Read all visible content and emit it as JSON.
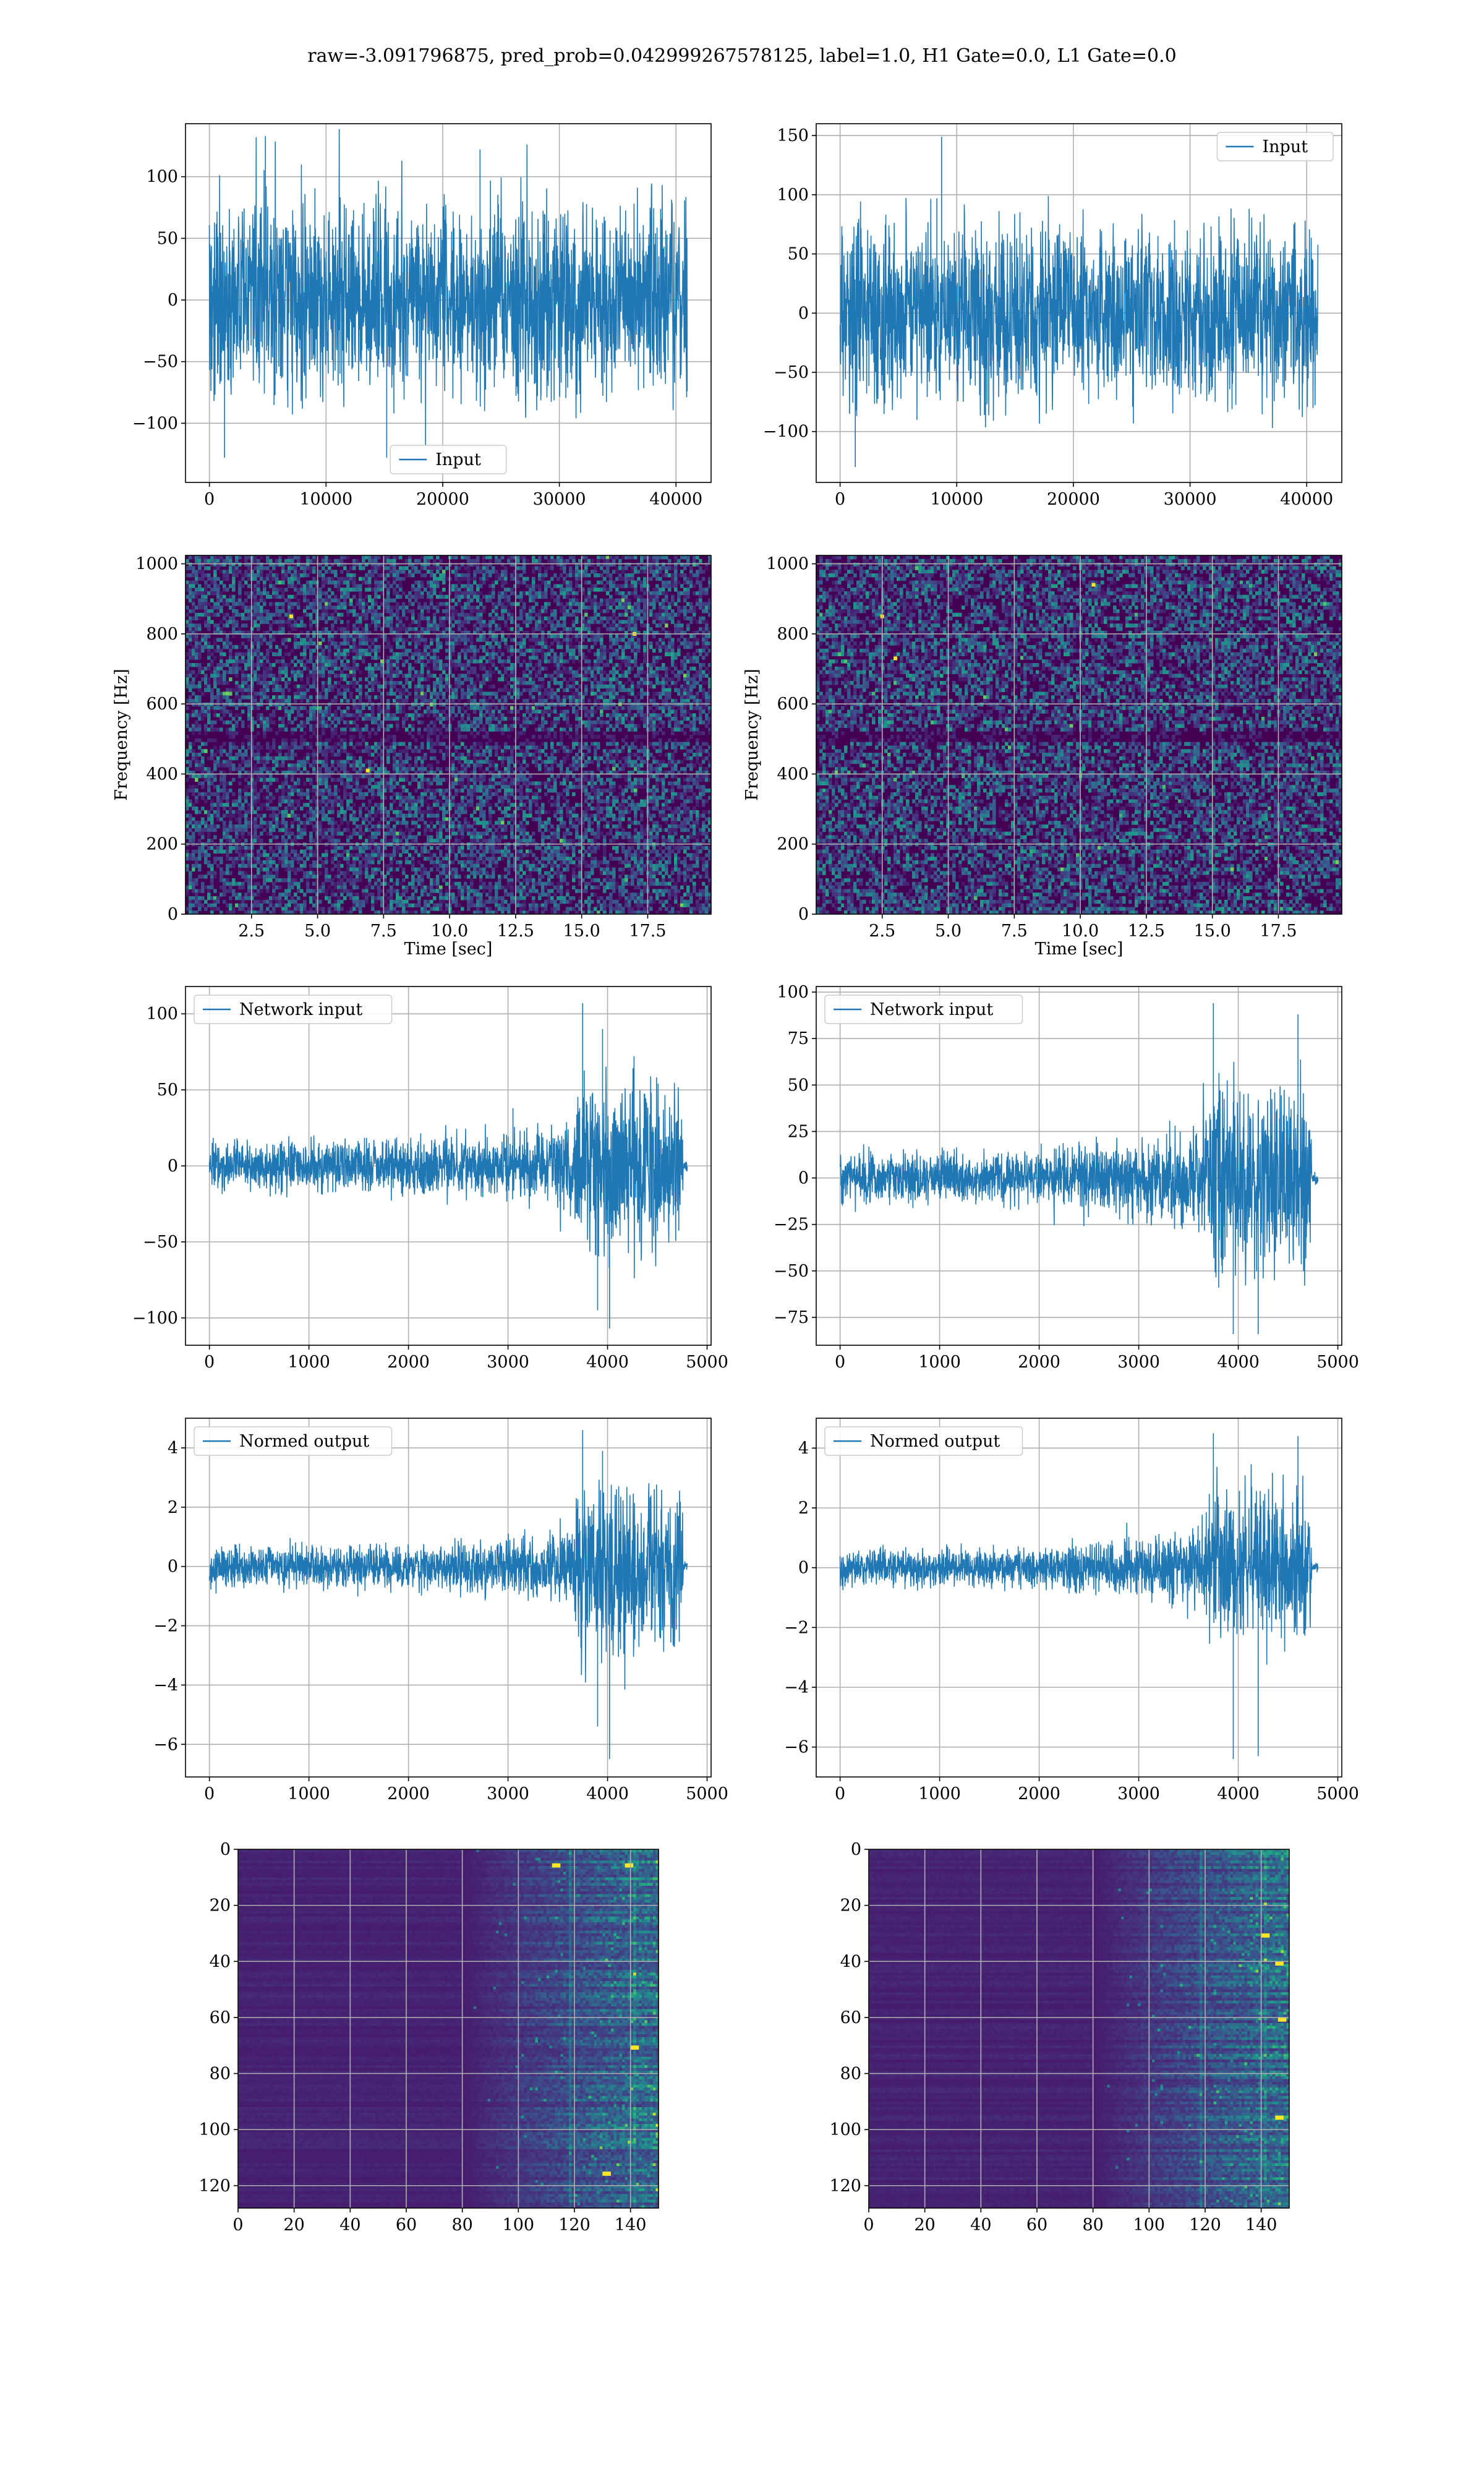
{
  "figure": {
    "title": "raw=-3.091796875, pred_prob=0.042999267578125, label=1.0, H1 Gate=0.0, L1 Gate=0.0",
    "colors": {
      "line": "#1f77b4",
      "grid": "#b0b0b0",
      "axes": "#000000",
      "viridis": [
        "#440154",
        "#472d7b",
        "#3b528b",
        "#2c728e",
        "#21918c",
        "#28ae80",
        "#5ec962",
        "#addc30",
        "#fde725"
      ]
    }
  },
  "chart_data": [
    {
      "id": "input-h1",
      "type": "line",
      "legend": [
        "Input"
      ],
      "legend_loc": "lower center",
      "xlim": [
        -2048,
        43008
      ],
      "ylim": [
        -148,
        143
      ],
      "xticks": [
        0,
        10000,
        20000,
        30000,
        40000
      ],
      "yticks": [
        -100,
        -50,
        0,
        50,
        100
      ],
      "series": [
        {
          "name": "Input",
          "kind": "noise",
          "n": 40960,
          "envelope": {
            "x": [
              0,
              40960
            ],
            "amp": [
              65,
              65
            ]
          },
          "spikes": [
            [
              4800,
              133
            ],
            [
              15200,
              -128
            ],
            [
              23200,
              122
            ],
            [
              1300,
              -128
            ]
          ]
        }
      ]
    },
    {
      "id": "input-l1",
      "type": "line",
      "legend": [
        "Input"
      ],
      "legend_loc": "upper right",
      "xlim": [
        -2048,
        43008
      ],
      "ylim": [
        -143,
        160
      ],
      "xticks": [
        0,
        10000,
        20000,
        30000,
        40000
      ],
      "yticks": [
        -100,
        -50,
        0,
        50,
        100,
        150
      ],
      "series": [
        {
          "name": "Input",
          "kind": "noise",
          "n": 40960,
          "envelope": {
            "x": [
              0,
              40960
            ],
            "amp": [
              62,
              62
            ]
          },
          "spikes": [
            [
              8700,
              149
            ],
            [
              1300,
              -130
            ],
            [
              8300,
              97
            ]
          ]
        }
      ]
    },
    {
      "id": "spec-h1",
      "type": "heatmap",
      "colormap": "viridis",
      "xlabel": "Time [sec]",
      "ylabel": "Frequency [Hz]",
      "xlim": [
        0,
        19.9
      ],
      "ylim": [
        0,
        1024
      ],
      "xticks": [
        2.5,
        5.0,
        7.5,
        10.0,
        12.5,
        15.0,
        17.5
      ],
      "xticklabels": [
        "2.5",
        "5.0",
        "7.5",
        "10.0",
        "12.5",
        "15.0",
        "17.5"
      ],
      "yticks": [
        0,
        200,
        400,
        600,
        800,
        1000
      ],
      "dark_band_freq": [
        500,
        512
      ],
      "bright_spots": [
        [
          17.0,
          800
        ],
        [
          6.9,
          410
        ],
        [
          4.0,
          850
        ]
      ]
    },
    {
      "id": "spec-l1",
      "type": "heatmap",
      "colormap": "viridis",
      "xlabel": "Time [sec]",
      "ylabel": "Frequency [Hz]",
      "xlim": [
        0,
        19.9
      ],
      "ylim": [
        0,
        1024
      ],
      "xticks": [
        2.5,
        5.0,
        7.5,
        10.0,
        12.5,
        15.0,
        17.5
      ],
      "xticklabels": [
        "2.5",
        "5.0",
        "7.5",
        "10.0",
        "12.5",
        "15.0",
        "17.5"
      ],
      "yticks": [
        0,
        200,
        400,
        600,
        800,
        1000
      ],
      "dark_band_freq": [
        500,
        512
      ],
      "bright_spots": [
        [
          10.5,
          940
        ],
        [
          3.0,
          730
        ],
        [
          2.5,
          850
        ]
      ]
    },
    {
      "id": "netin-h1",
      "type": "line",
      "legend": [
        "Network input"
      ],
      "legend_loc": "upper left",
      "xlim": [
        -240,
        5040
      ],
      "ylim": [
        -118,
        118
      ],
      "xticks": [
        0,
        1000,
        2000,
        3000,
        4000,
        5000
      ],
      "yticks": [
        -100,
        -50,
        0,
        50,
        100
      ],
      "series": [
        {
          "name": "Network input",
          "kind": "noise",
          "n": 4800,
          "envelope": {
            "x": [
              0,
              2000,
              3400,
              3650,
              3700,
              4500,
              4750,
              4760,
              4800
            ],
            "amp": [
              13,
              15,
              20,
              25,
              48,
              45,
              45,
              3,
              3
            ]
          },
          "spikes": [
            [
              3750,
              107
            ],
            [
              4020,
              -107
            ],
            [
              3950,
              90
            ],
            [
              3900,
              -95
            ],
            [
              3050,
              38
            ]
          ]
        }
      ]
    },
    {
      "id": "netin-l1",
      "type": "line",
      "legend": [
        "Network input"
      ],
      "legend_loc": "upper left",
      "xlim": [
        -240,
        5040
      ],
      "ylim": [
        -90,
        103
      ],
      "xticks": [
        0,
        1000,
        2000,
        3000,
        4000,
        5000
      ],
      "yticks": [
        -75,
        -50,
        -25,
        0,
        25,
        50,
        75,
        100
      ],
      "series": [
        {
          "name": "Network input",
          "kind": "noise",
          "n": 4800,
          "envelope": {
            "x": [
              0,
              2000,
              3300,
              3600,
              3700,
              4500,
              4720,
              4740,
              4800
            ],
            "amp": [
              11,
              12,
              20,
              24,
              45,
              42,
              42,
              3,
              3
            ]
          },
          "spikes": [
            [
              3750,
              94
            ],
            [
              3950,
              -84
            ],
            [
              4200,
              -84
            ],
            [
              4600,
              88
            ]
          ]
        }
      ]
    },
    {
      "id": "normed-h1",
      "type": "line",
      "legend": [
        "Normed output"
      ],
      "legend_loc": "upper left",
      "xlim": [
        -240,
        5040
      ],
      "ylim": [
        -7.1,
        5.0
      ],
      "xticks": [
        0,
        1000,
        2000,
        3000,
        4000,
        5000
      ],
      "yticks": [
        -6,
        -4,
        -2,
        0,
        2,
        4
      ],
      "series": [
        {
          "name": "Normed output",
          "kind": "noise",
          "n": 4800,
          "envelope": {
            "x": [
              0,
              2000,
              3400,
              3650,
              3700,
              4500,
              4750,
              4760,
              4800
            ],
            "amp": [
              0.55,
              0.6,
              0.9,
              1.1,
              2.4,
              2.3,
              2.3,
              0.15,
              0.15
            ]
          },
          "spikes": [
            [
              3750,
              4.6
            ],
            [
              4020,
              -6.5
            ],
            [
              3950,
              3.9
            ],
            [
              3900,
              -5.4
            ]
          ]
        }
      ]
    },
    {
      "id": "normed-l1",
      "type": "line",
      "legend": [
        "Normed output"
      ],
      "legend_loc": "upper left",
      "xlim": [
        -240,
        5040
      ],
      "ylim": [
        -7.0,
        5.0
      ],
      "xticks": [
        0,
        1000,
        2000,
        3000,
        4000,
        5000
      ],
      "yticks": [
        -6,
        -4,
        -2,
        0,
        2,
        4
      ],
      "series": [
        {
          "name": "Normed output",
          "kind": "noise",
          "n": 4800,
          "envelope": {
            "x": [
              0,
              2000,
              3300,
              3600,
              3700,
              4500,
              4720,
              4740,
              4800
            ],
            "amp": [
              0.5,
              0.55,
              0.9,
              1.1,
              2.2,
              2.1,
              2.1,
              0.15,
              0.15
            ]
          },
          "spikes": [
            [
              3750,
              4.5
            ],
            [
              3950,
              -6.4
            ],
            [
              4200,
              -6.3
            ],
            [
              4600,
              4.4
            ]
          ]
        }
      ]
    },
    {
      "id": "features-h1",
      "type": "heatmap",
      "colormap": "viridis",
      "xlim": [
        0,
        150
      ],
      "ylim": [
        128,
        0
      ],
      "xticks": [
        0,
        20,
        40,
        60,
        80,
        100,
        120,
        140
      ],
      "yticks": [
        0,
        20,
        40,
        60,
        80,
        100,
        120
      ],
      "activation_onset_col": 95,
      "bright_cells": [
        [
          130,
          115
        ],
        [
          140,
          70
        ],
        [
          138,
          5
        ],
        [
          112,
          5
        ]
      ]
    },
    {
      "id": "features-l1",
      "type": "heatmap",
      "colormap": "viridis",
      "xlim": [
        0,
        150
      ],
      "ylim": [
        128,
        0
      ],
      "xticks": [
        0,
        20,
        40,
        60,
        80,
        100,
        120,
        140
      ],
      "yticks": [
        0,
        20,
        40,
        60,
        80,
        100,
        120
      ],
      "activation_onset_col": 95,
      "bright_cells": [
        [
          145,
          40
        ],
        [
          145,
          95
        ],
        [
          140,
          30
        ],
        [
          146,
          60
        ]
      ]
    }
  ]
}
